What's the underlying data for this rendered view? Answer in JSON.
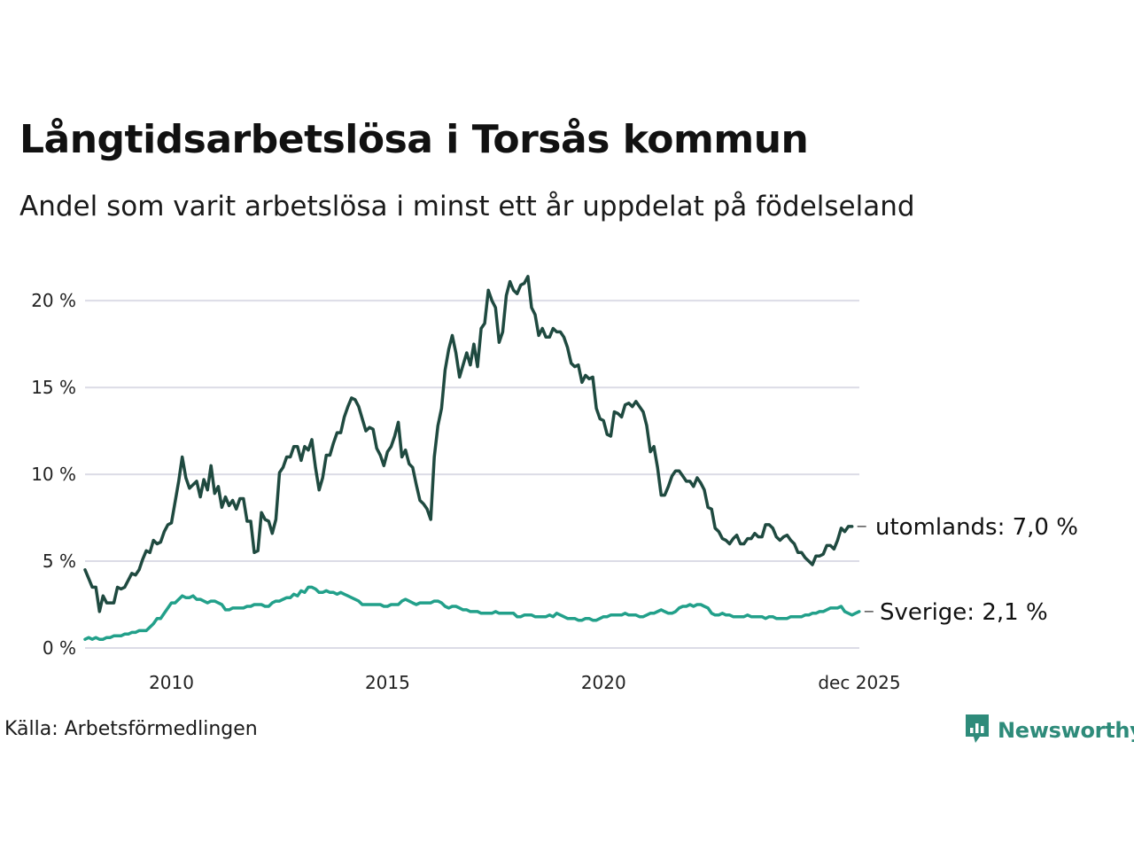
{
  "title": "Långtidsarbetslösa i Torsås kommun",
  "subtitle": "Andel som varit arbetslösa i minst ett år uppdelat på födelseland",
  "source": "Källa: Arbetsförmedlingen",
  "brand": "Newsworthy",
  "colors": {
    "abroad": "#1f4a40",
    "sweden": "#22a08a",
    "grid": "#dcdce6",
    "brand": "#2e8b7a"
  },
  "chart_data": {
    "type": "line",
    "x_start": 2008.0,
    "x_step": 0.08333,
    "xlim": [
      2008.0,
      2025.92
    ],
    "ylim": [
      0,
      22
    ],
    "y_ticks": [
      0,
      5,
      10,
      15,
      20
    ],
    "y_tick_labels": [
      "0 %",
      "5 %",
      "10 %",
      "15 %",
      "20 %"
    ],
    "x_ticks": [
      2010,
      2015,
      2020,
      2025.92
    ],
    "x_tick_labels": [
      "2010",
      "2015",
      "2020",
      "dec 2025"
    ],
    "grid": true,
    "series": [
      {
        "name": "utomlands",
        "label": "utomlands: 7,0 %",
        "values": [
          4.5,
          4.0,
          3.5,
          3.5,
          2.1,
          3.0,
          2.6,
          2.6,
          2.6,
          3.5,
          3.4,
          3.5,
          3.9,
          4.3,
          4.2,
          4.5,
          5.1,
          5.6,
          5.5,
          6.2,
          6.0,
          6.1,
          6.7,
          7.1,
          7.2,
          8.4,
          9.6,
          11.0,
          9.8,
          9.2,
          9.4,
          9.6,
          8.7,
          9.7,
          9.1,
          10.5,
          8.9,
          9.3,
          8.1,
          8.7,
          8.2,
          8.5,
          8.0,
          8.6,
          8.6,
          7.3,
          7.3,
          5.5,
          5.6,
          7.8,
          7.4,
          7.3,
          6.6,
          7.4,
          10.1,
          10.4,
          11.0,
          11.0,
          11.6,
          11.6,
          10.8,
          11.6,
          11.4,
          12.0,
          10.4,
          9.1,
          9.8,
          11.1,
          11.1,
          11.8,
          12.4,
          12.4,
          13.3,
          13.9,
          14.4,
          14.3,
          13.9,
          13.2,
          12.5,
          12.7,
          12.6,
          11.5,
          11.1,
          10.5,
          11.3,
          11.6,
          12.2,
          13.0,
          11.0,
          11.4,
          10.6,
          10.4,
          9.4,
          8.5,
          8.3,
          8.0,
          7.4,
          11.0,
          12.8,
          13.8,
          16.0,
          17.2,
          18.0,
          17.0,
          15.6,
          16.3,
          17.0,
          16.3,
          17.5,
          16.2,
          18.4,
          18.7,
          20.6,
          20.0,
          19.6,
          17.6,
          18.2,
          20.3,
          21.1,
          20.6,
          20.4,
          20.9,
          21.0,
          21.4,
          19.6,
          19.2,
          18.0,
          18.4,
          17.9,
          17.9,
          18.4,
          18.2,
          18.2,
          17.9,
          17.3,
          16.4,
          16.2,
          16.3,
          15.3,
          15.7,
          15.5,
          15.6,
          13.8,
          13.2,
          13.1,
          12.3,
          12.2,
          13.6,
          13.5,
          13.3,
          14.0,
          14.1,
          13.9,
          14.2,
          13.9,
          13.6,
          12.8,
          11.3,
          11.6,
          10.4,
          8.8,
          8.8,
          9.3,
          9.9,
          10.2,
          10.2,
          9.9,
          9.6,
          9.6,
          9.3,
          9.8,
          9.5,
          9.1,
          8.1,
          8.0,
          6.9,
          6.7,
          6.3,
          6.2,
          6.0,
          6.3,
          6.5,
          6.0,
          6.0,
          6.3,
          6.3,
          6.6,
          6.4,
          6.4,
          7.1,
          7.1,
          6.9,
          6.4,
          6.2,
          6.4,
          6.5,
          6.2,
          6.0,
          5.5,
          5.5,
          5.2,
          5.0,
          4.8,
          5.3,
          5.3,
          5.4,
          5.9,
          5.9,
          5.7,
          6.2,
          6.9,
          6.7,
          7.0,
          7.0
        ]
      },
      {
        "name": "Sverige",
        "label": "Sverige: 2,1 %",
        "values": [
          0.5,
          0.6,
          0.5,
          0.6,
          0.5,
          0.5,
          0.6,
          0.6,
          0.7,
          0.7,
          0.7,
          0.8,
          0.8,
          0.9,
          0.9,
          1.0,
          1.0,
          1.0,
          1.2,
          1.4,
          1.7,
          1.7,
          2.0,
          2.3,
          2.6,
          2.6,
          2.8,
          3.0,
          2.9,
          2.9,
          3.0,
          2.8,
          2.8,
          2.7,
          2.6,
          2.7,
          2.7,
          2.6,
          2.5,
          2.2,
          2.2,
          2.3,
          2.3,
          2.3,
          2.3,
          2.4,
          2.4,
          2.5,
          2.5,
          2.5,
          2.4,
          2.4,
          2.6,
          2.7,
          2.7,
          2.8,
          2.9,
          2.9,
          3.1,
          3.0,
          3.3,
          3.2,
          3.5,
          3.5,
          3.4,
          3.2,
          3.2,
          3.3,
          3.2,
          3.2,
          3.1,
          3.2,
          3.1,
          3.0,
          2.9,
          2.8,
          2.7,
          2.5,
          2.5,
          2.5,
          2.5,
          2.5,
          2.5,
          2.4,
          2.4,
          2.5,
          2.5,
          2.5,
          2.7,
          2.8,
          2.7,
          2.6,
          2.5,
          2.6,
          2.6,
          2.6,
          2.6,
          2.7,
          2.7,
          2.6,
          2.4,
          2.3,
          2.4,
          2.4,
          2.3,
          2.2,
          2.2,
          2.1,
          2.1,
          2.1,
          2.0,
          2.0,
          2.0,
          2.0,
          2.1,
          2.0,
          2.0,
          2.0,
          2.0,
          2.0,
          1.8,
          1.8,
          1.9,
          1.9,
          1.9,
          1.8,
          1.8,
          1.8,
          1.8,
          1.9,
          1.8,
          2.0,
          1.9,
          1.8,
          1.7,
          1.7,
          1.7,
          1.6,
          1.6,
          1.7,
          1.7,
          1.6,
          1.6,
          1.7,
          1.8,
          1.8,
          1.9,
          1.9,
          1.9,
          1.9,
          2.0,
          1.9,
          1.9,
          1.9,
          1.8,
          1.8,
          1.9,
          2.0,
          2.0,
          2.1,
          2.2,
          2.1,
          2.0,
          2.0,
          2.1,
          2.3,
          2.4,
          2.4,
          2.5,
          2.4,
          2.5,
          2.5,
          2.4,
          2.3,
          2.0,
          1.9,
          1.9,
          2.0,
          1.9,
          1.9,
          1.8,
          1.8,
          1.8,
          1.8,
          1.9,
          1.8,
          1.8,
          1.8,
          1.8,
          1.7,
          1.8,
          1.8,
          1.7,
          1.7,
          1.7,
          1.7,
          1.8,
          1.8,
          1.8,
          1.8,
          1.9,
          1.9,
          2.0,
          2.0,
          2.1,
          2.1,
          2.2,
          2.3,
          2.3,
          2.3,
          2.4,
          2.1,
          2.0,
          1.9,
          2.0,
          2.1
        ]
      }
    ]
  }
}
